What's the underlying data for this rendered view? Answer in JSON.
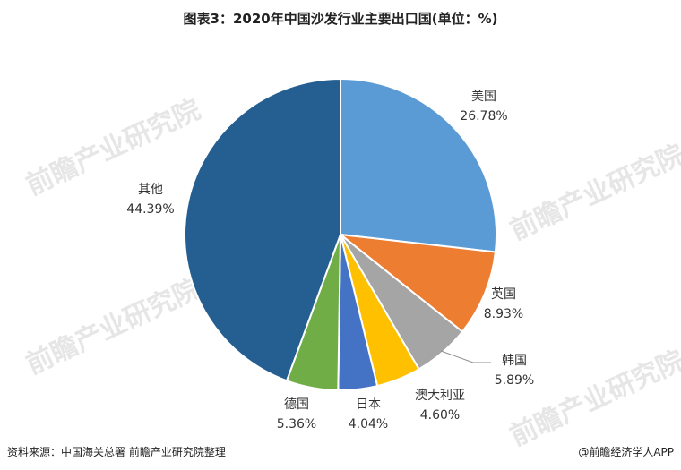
{
  "title": "图表3：2020年中国沙发行业主要出口国(单位：%)",
  "footer": {
    "source": "资料来源：中国海关总署 前瞻产业研究院整理",
    "brand": "@前瞻经济学人APP"
  },
  "watermark": "前瞻产业研究院",
  "chart_data": {
    "type": "pie",
    "title": "图表3：2020年中国沙发行业主要出口国(单位：%)",
    "slices": [
      {
        "label": "美国",
        "value": 26.78,
        "display": "26.78%",
        "color": "#5b9bd5"
      },
      {
        "label": "英国",
        "value": 8.93,
        "display": "8.93%",
        "color": "#ed7d31"
      },
      {
        "label": "韩国",
        "value": 5.89,
        "display": "5.89%",
        "color": "#a5a5a5"
      },
      {
        "label": "澳大利亚",
        "value": 4.6,
        "display": "4.60%",
        "color": "#ffc000"
      },
      {
        "label": "日本",
        "value": 4.04,
        "display": "4.04%",
        "color": "#4472c4"
      },
      {
        "label": "德国",
        "value": 5.36,
        "display": "5.36%",
        "color": "#70ad47"
      },
      {
        "label": "其他",
        "value": 44.39,
        "display": "44.39%",
        "color": "#255e91"
      }
    ]
  }
}
